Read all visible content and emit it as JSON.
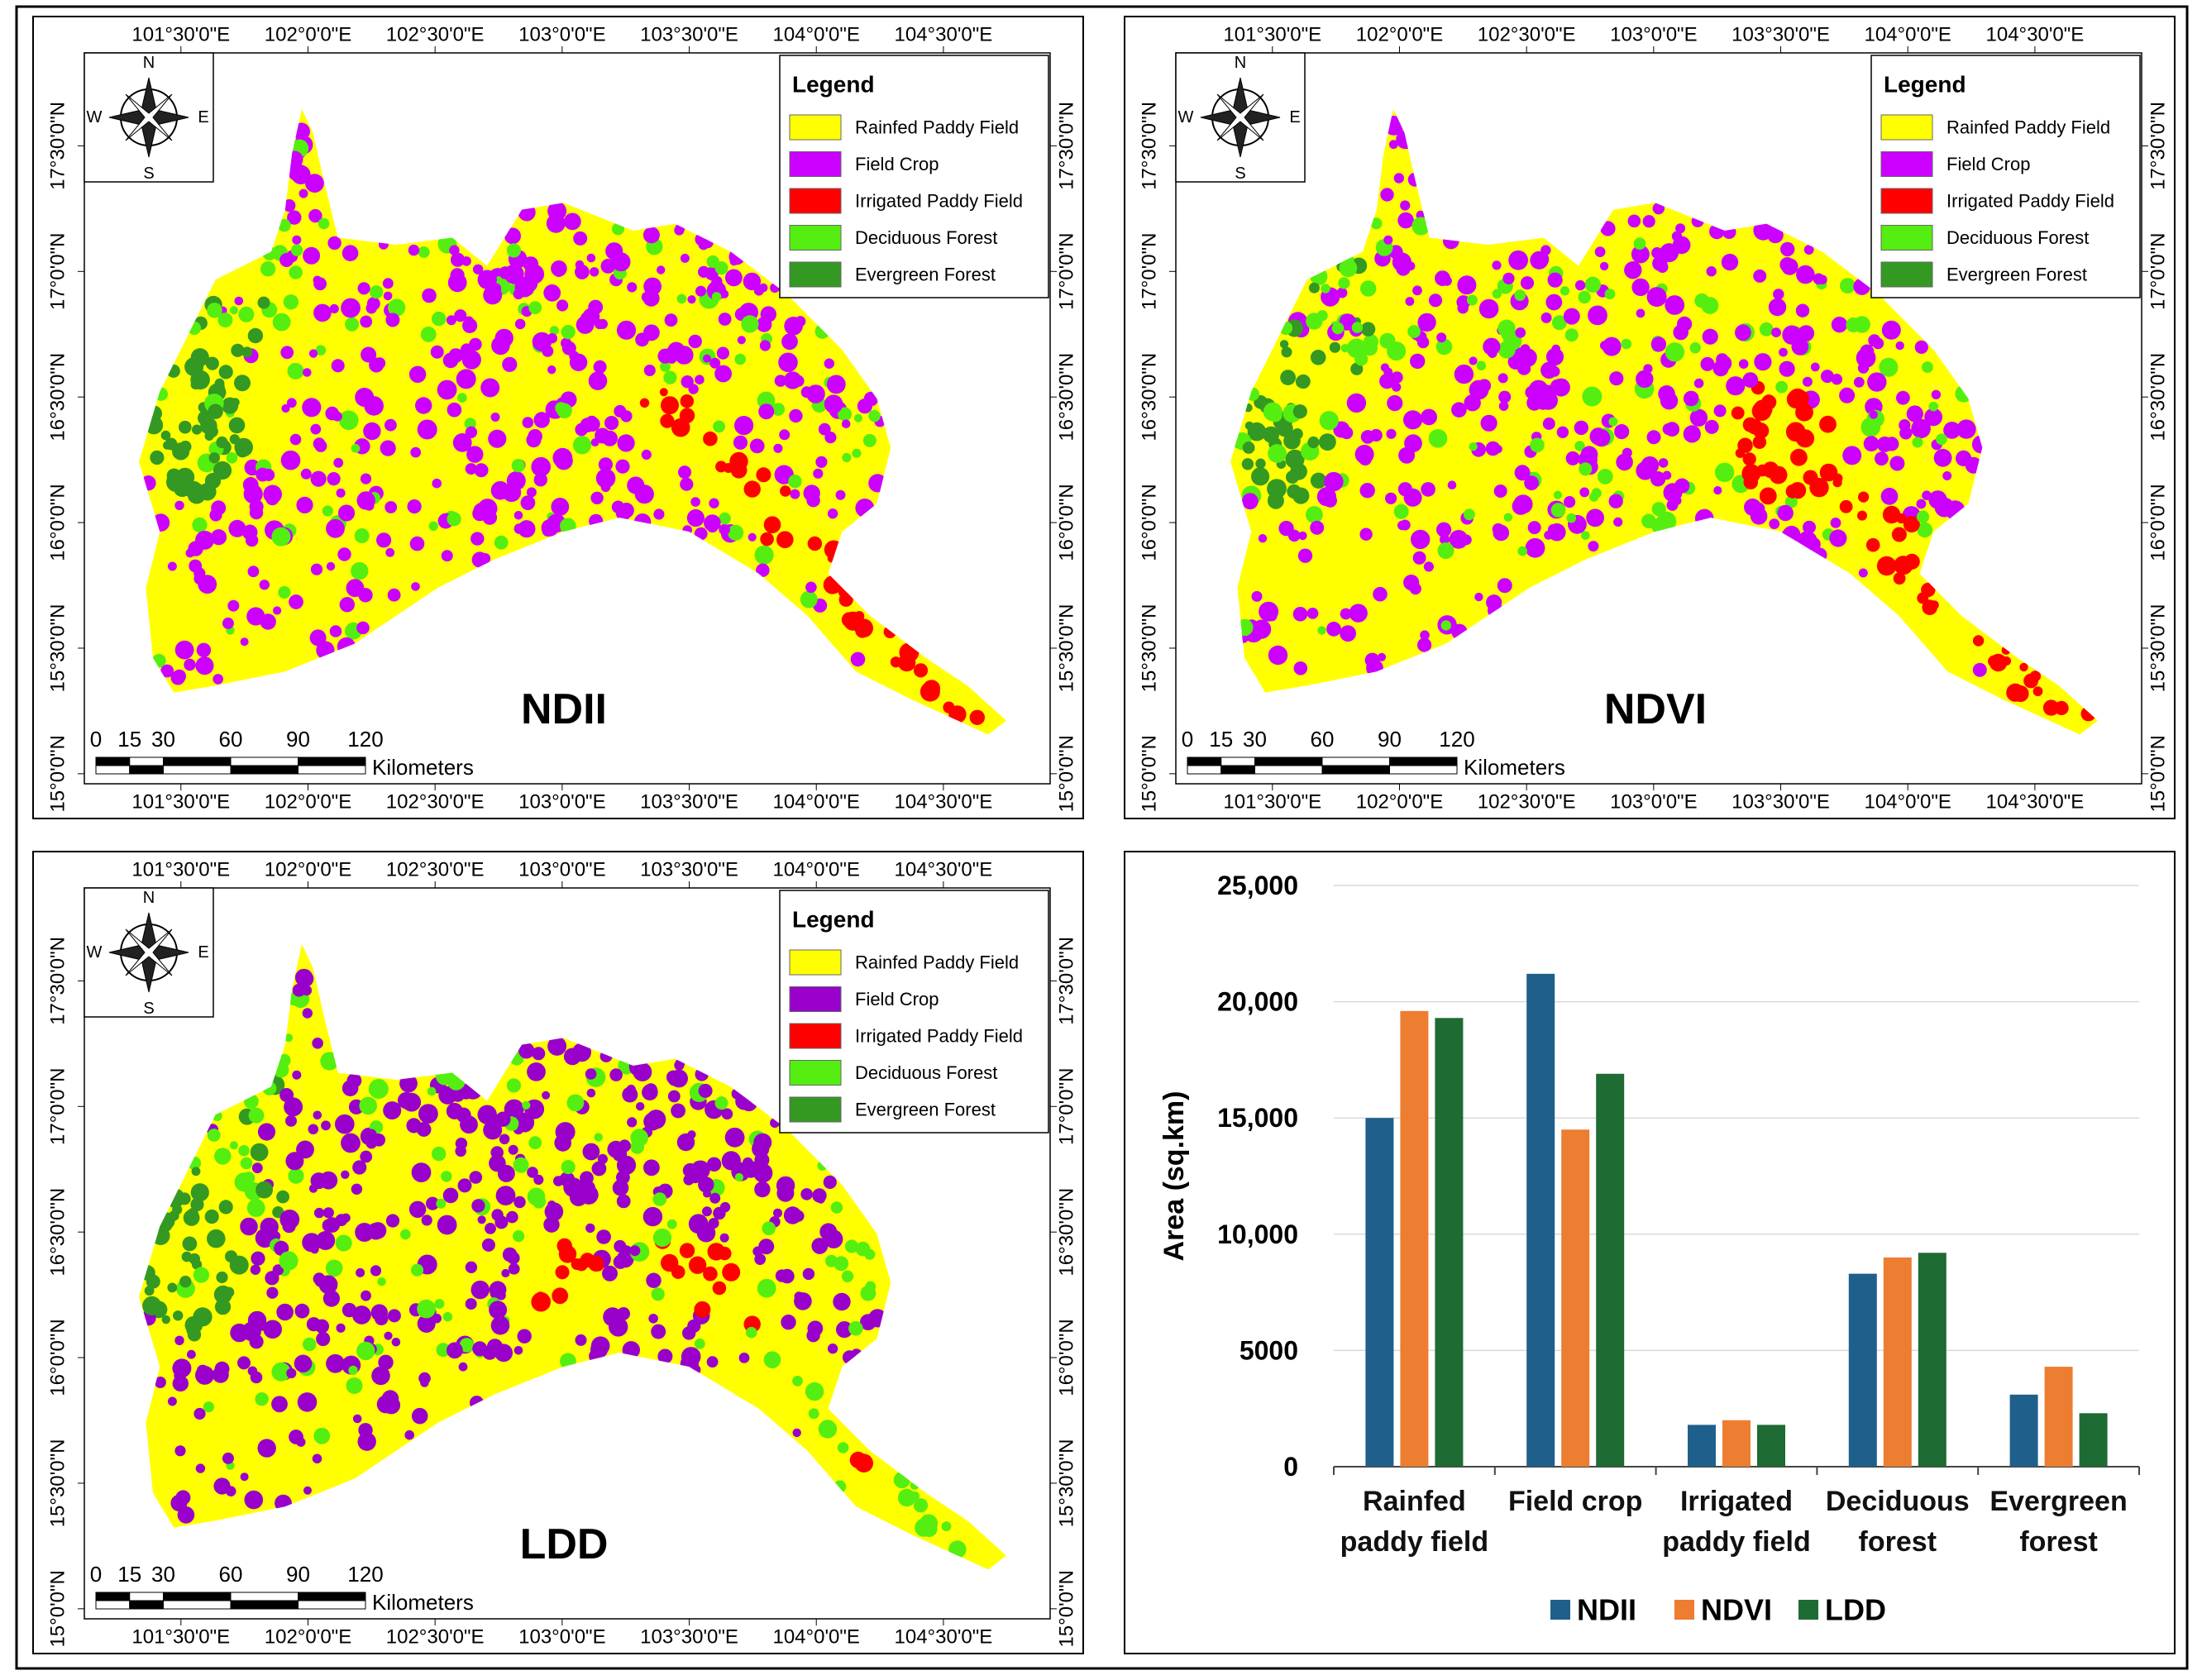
{
  "maps": [
    {
      "label": "NDII",
      "legend": {
        "title": "Legend",
        "items": [
          {
            "name": "Rainfed Paddy Field",
            "color": "#ffff00"
          },
          {
            "name": "Field Crop",
            "color": "#cc00ff"
          },
          {
            "name": "Irrigated Paddy Field",
            "color": "#ff0000"
          },
          {
            "name": "Deciduous Forest",
            "color": "#55ee11"
          },
          {
            "name": "Evergreen Forest",
            "color": "#339922"
          }
        ]
      },
      "north_arrow": {
        "n": "N",
        "e": "E",
        "s": "S",
        "w": "W"
      },
      "scale_bar": {
        "ticks": [
          0,
          15,
          30,
          60,
          90,
          120
        ],
        "unit": "Kilometers"
      },
      "xlim": [
        101.12,
        104.92
      ],
      "ylim": [
        14.96,
        17.87
      ],
      "xticks": [
        {
          "value": 101.5,
          "label": "101°30'0\"E"
        },
        {
          "value": 102,
          "label": "102°0'0\"E"
        },
        {
          "value": 102.5,
          "label": "102°30'0\"E"
        },
        {
          "value": 103,
          "label": "103°0'0\"E"
        },
        {
          "value": 103.5,
          "label": "103°30'0\"E"
        },
        {
          "value": 104,
          "label": "104°0'0\"E"
        },
        {
          "value": 104.5,
          "label": "104°30'0\"E"
        }
      ],
      "yticks": [
        {
          "value": 15,
          "label": "15°0'0\"N"
        },
        {
          "value": 15.5,
          "label": "15°30'0\"N"
        },
        {
          "value": 16,
          "label": "16°0'0\"N"
        },
        {
          "value": 16.5,
          "label": "16°30'0\"N"
        },
        {
          "value": 17,
          "label": "17°0'0\"N"
        },
        {
          "value": 17.5,
          "label": "17°30'0\"N"
        }
      ]
    },
    {
      "label": "NDVI",
      "legend": {
        "title": "Legend",
        "items": [
          {
            "name": "Rainfed Paddy Field",
            "color": "#ffff00"
          },
          {
            "name": "Field Crop",
            "color": "#cc00ff"
          },
          {
            "name": "Irrigated Paddy Field",
            "color": "#ff0000"
          },
          {
            "name": "Deciduous Forest",
            "color": "#55ee11"
          },
          {
            "name": "Evergreen Forest",
            "color": "#339922"
          }
        ]
      },
      "north_arrow": {
        "n": "N",
        "e": "E",
        "s": "S",
        "w": "W"
      },
      "scale_bar": {
        "ticks": [
          0,
          15,
          30,
          60,
          90,
          120
        ],
        "unit": "Kilometers"
      },
      "xlim": [
        101.12,
        104.92
      ],
      "ylim": [
        14.96,
        17.87
      ],
      "xticks": [
        {
          "value": 101.5,
          "label": "101°30'0\"E"
        },
        {
          "value": 102,
          "label": "102°0'0\"E"
        },
        {
          "value": 102.5,
          "label": "102°30'0\"E"
        },
        {
          "value": 103,
          "label": "103°0'0\"E"
        },
        {
          "value": 103.5,
          "label": "103°30'0\"E"
        },
        {
          "value": 104,
          "label": "104°0'0\"E"
        },
        {
          "value": 104.5,
          "label": "104°30'0\"E"
        }
      ],
      "yticks": [
        {
          "value": 15,
          "label": "15°0'0\"N"
        },
        {
          "value": 15.5,
          "label": "15°30'0\"N"
        },
        {
          "value": 16,
          "label": "16°0'0\"N"
        },
        {
          "value": 16.5,
          "label": "16°30'0\"N"
        },
        {
          "value": 17,
          "label": "17°0'0\"N"
        },
        {
          "value": 17.5,
          "label": "17°30'0\"N"
        }
      ]
    },
    {
      "label": "LDD",
      "legend": {
        "title": "Legend",
        "items": [
          {
            "name": "Rainfed Paddy Field",
            "color": "#ffff00"
          },
          {
            "name": "Field Crop",
            "color": "#9900cc"
          },
          {
            "name": "Irrigated Paddy Field",
            "color": "#ff0000"
          },
          {
            "name": "Deciduous Forest",
            "color": "#55ee11"
          },
          {
            "name": "Evergreen Forest",
            "color": "#339922"
          }
        ]
      },
      "north_arrow": {
        "n": "N",
        "e": "E",
        "s": "S",
        "w": "W"
      },
      "scale_bar": {
        "ticks": [
          0,
          15,
          30,
          60,
          90,
          120
        ],
        "unit": "Kilometers"
      },
      "xlim": [
        101.12,
        104.92
      ],
      "ylim": [
        14.96,
        17.87
      ],
      "xticks": [
        {
          "value": 101.5,
          "label": "101°30'0\"E"
        },
        {
          "value": 102,
          "label": "102°0'0\"E"
        },
        {
          "value": 102.5,
          "label": "102°30'0\"E"
        },
        {
          "value": 103,
          "label": "103°0'0\"E"
        },
        {
          "value": 103.5,
          "label": "103°30'0\"E"
        },
        {
          "value": 104,
          "label": "104°0'0\"E"
        },
        {
          "value": 104.5,
          "label": "104°30'0\"E"
        }
      ],
      "yticks": [
        {
          "value": 15,
          "label": "15°0'0\"N"
        },
        {
          "value": 15.5,
          "label": "15°30'0\"N"
        },
        {
          "value": 16,
          "label": "16°0'0\"N"
        },
        {
          "value": 16.5,
          "label": "16°30'0\"N"
        },
        {
          "value": 17,
          "label": "17°0'0\"N"
        },
        {
          "value": 17.5,
          "label": "17°30'0\"N"
        }
      ]
    }
  ],
  "chart_data": {
    "type": "bar",
    "ylabel": "Area (sq.km)",
    "categories": [
      "Rainfed paddy field",
      "Field crop",
      "Irrigated paddy field",
      "Deciduous forest",
      "Evergreen forest"
    ],
    "series": [
      {
        "name": "NDII",
        "color": "#1f5f8b",
        "values": [
          15000,
          21200,
          1800,
          8300,
          3100
        ]
      },
      {
        "name": "NDVI",
        "color": "#ed7d31",
        "values": [
          19600,
          14500,
          2000,
          9000,
          4300
        ]
      },
      {
        "name": "LDD",
        "color": "#1e6b34",
        "values": [
          19300,
          16900,
          1800,
          9200,
          2300
        ]
      }
    ],
    "ylim": [
      0,
      25000
    ],
    "yticks": [
      0,
      5000,
      {
        "value": 10000,
        "label": "10,000"
      },
      {
        "value": 15000,
        "label": "15,000"
      },
      {
        "value": 20000,
        "label": "20,000"
      },
      {
        "value": 25000,
        "label": "25,000"
      }
    ],
    "grid": true,
    "legend": "bottom"
  }
}
